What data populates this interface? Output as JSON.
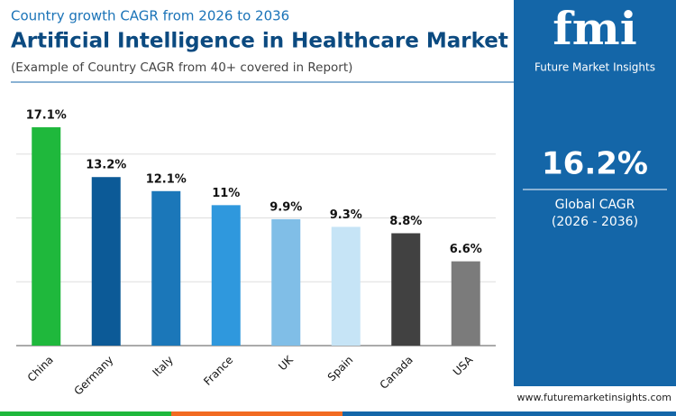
{
  "chart_data": {
    "type": "bar",
    "subtitle": "Country growth CAGR from 2026 to 2036",
    "title": "Artificial Intelligence in Healthcare Market",
    "note": "(Example of Country CAGR from 40+ covered in Report)",
    "categories": [
      "China",
      "Germany",
      "Italy",
      "France",
      "UK",
      "Spain",
      "Canada",
      "USA"
    ],
    "values": [
      17.1,
      13.2,
      12.1,
      11,
      9.9,
      9.3,
      8.8,
      6.6
    ],
    "value_labels": [
      "17.1%",
      "13.2%",
      "12.1%",
      "11%",
      "9.9%",
      "9.3%",
      "8.8%",
      "6.6%"
    ],
    "colors": [
      "#1fb83c",
      "#0c5a97",
      "#1b77b9",
      "#2f98dd",
      "#80bee7",
      "#c6e4f6",
      "#414141",
      "#7b7b7b"
    ],
    "ylim": [
      0,
      20
    ],
    "yticks": [
      0,
      5,
      10,
      15
    ],
    "grid": true
  },
  "sidebar": {
    "logo": "fmi",
    "brand": "Future Market Insights",
    "cagr": "16.2%",
    "cagr_label": "Global CAGR",
    "period": "(2026 - 2036)"
  },
  "footer": {
    "url": "www.futuremarketinsights.com"
  }
}
